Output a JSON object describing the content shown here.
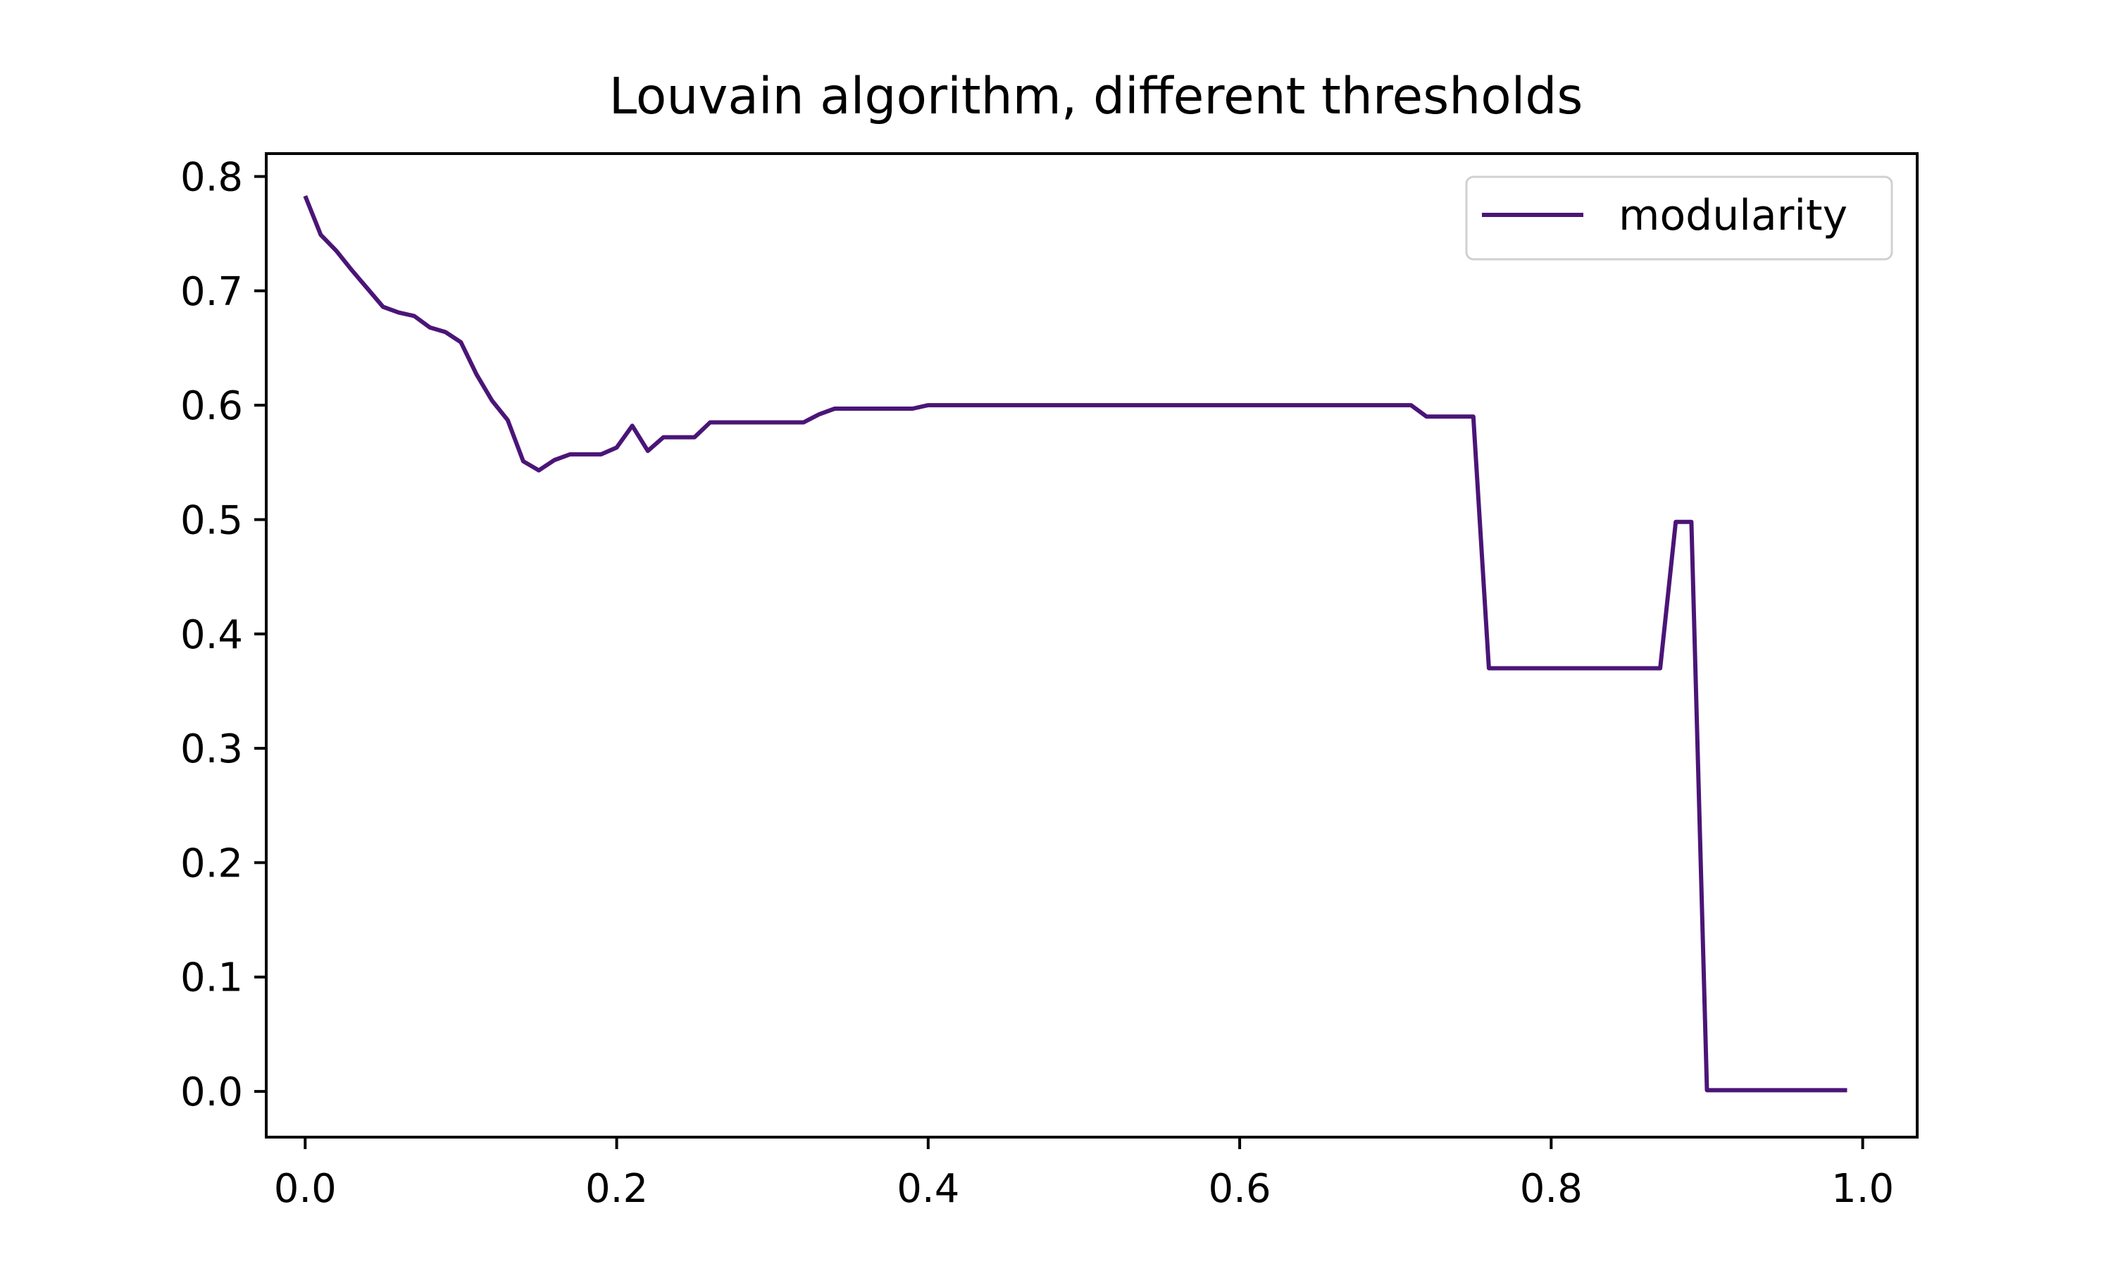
{
  "chart_data": {
    "type": "line",
    "title": "Louvain algorithm, different thresholds",
    "xlabel": "",
    "ylabel": "",
    "xlim": [
      -0.025,
      1.035
    ],
    "ylim": [
      -0.04,
      0.82
    ],
    "x_ticks": [
      "0.0",
      "0.2",
      "0.4",
      "0.6",
      "0.8",
      "1.0"
    ],
    "y_ticks": [
      "0.0",
      "0.1",
      "0.2",
      "0.3",
      "0.4",
      "0.5",
      "0.6",
      "0.7",
      "0.8"
    ],
    "grid": false,
    "legend": {
      "position": "top-right",
      "entries": [
        "modularity"
      ]
    },
    "series": [
      {
        "name": "modularity",
        "color": "#4b1577",
        "x": [
          0.0,
          0.01,
          0.02,
          0.03,
          0.04,
          0.05,
          0.06,
          0.07,
          0.08,
          0.09,
          0.1,
          0.11,
          0.12,
          0.13,
          0.14,
          0.15,
          0.16,
          0.17,
          0.18,
          0.19,
          0.2,
          0.21,
          0.22,
          0.23,
          0.24,
          0.25,
          0.26,
          0.27,
          0.28,
          0.29,
          0.3,
          0.31,
          0.32,
          0.33,
          0.34,
          0.35,
          0.36,
          0.37,
          0.38,
          0.39,
          0.4,
          0.41,
          0.42,
          0.43,
          0.44,
          0.45,
          0.46,
          0.47,
          0.48,
          0.49,
          0.5,
          0.51,
          0.52,
          0.53,
          0.54,
          0.55,
          0.56,
          0.57,
          0.58,
          0.59,
          0.6,
          0.61,
          0.62,
          0.63,
          0.64,
          0.65,
          0.66,
          0.67,
          0.68,
          0.69,
          0.7,
          0.71,
          0.72,
          0.73,
          0.74,
          0.75,
          0.76,
          0.77,
          0.78,
          0.79,
          0.8,
          0.81,
          0.82,
          0.83,
          0.84,
          0.85,
          0.86,
          0.87,
          0.88,
          0.89,
          0.9,
          0.91,
          0.92,
          0.93,
          0.94,
          0.95,
          0.96,
          0.97,
          0.98,
          0.99
        ],
        "values": [
          0.783,
          0.749,
          0.735,
          0.718,
          0.702,
          0.686,
          0.681,
          0.678,
          0.668,
          0.664,
          0.655,
          0.627,
          0.604,
          0.587,
          0.551,
          0.543,
          0.552,
          0.557,
          0.557,
          0.557,
          0.563,
          0.582,
          0.56,
          0.572,
          0.572,
          0.572,
          0.585,
          0.585,
          0.585,
          0.585,
          0.585,
          0.585,
          0.585,
          0.592,
          0.597,
          0.597,
          0.597,
          0.597,
          0.597,
          0.597,
          0.6,
          0.6,
          0.6,
          0.6,
          0.6,
          0.6,
          0.6,
          0.6,
          0.6,
          0.6,
          0.6,
          0.6,
          0.6,
          0.6,
          0.6,
          0.6,
          0.6,
          0.6,
          0.6,
          0.6,
          0.6,
          0.6,
          0.6,
          0.6,
          0.6,
          0.6,
          0.6,
          0.6,
          0.6,
          0.6,
          0.6,
          0.6,
          0.59,
          0.59,
          0.59,
          0.59,
          0.37,
          0.37,
          0.37,
          0.37,
          0.37,
          0.37,
          0.37,
          0.37,
          0.37,
          0.37,
          0.37,
          0.37,
          0.498,
          0.498,
          0.001,
          0.001,
          0.001,
          0.001,
          0.001,
          0.001,
          0.001,
          0.001,
          0.001,
          0.001
        ]
      }
    ]
  }
}
